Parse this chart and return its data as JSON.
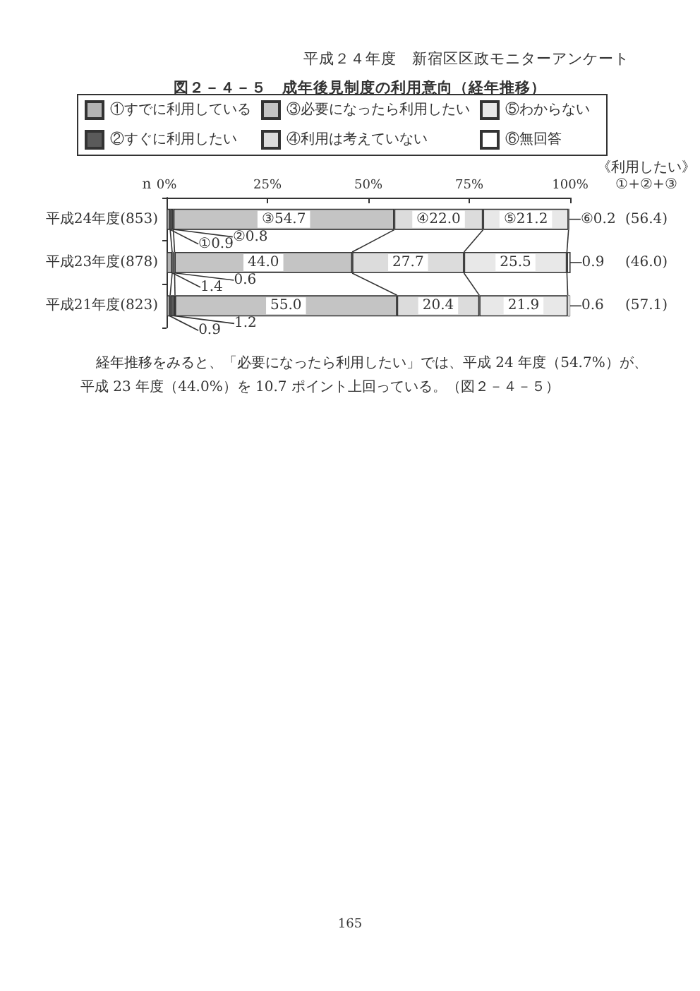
{
  "chart_data": {
    "type": "bar",
    "orientation": "horizontal",
    "stacked": true,
    "title": "図２－４－５　成年後見制度の利用意向（経年推移）",
    "ylabel": "n",
    "categories": [
      "平成24年度(853)",
      "平成23年度(878)",
      "平成21年度(823)"
    ],
    "series": [
      {
        "name": "①すでに利用している",
        "color": "#b4b4b4",
        "values": [
          0.9,
          1.4,
          0.9
        ],
        "value_labels": [
          "①0.9",
          "1.4",
          "0.9"
        ]
      },
      {
        "name": "②すぐに利用したい",
        "color": "#5a5a5a",
        "values": [
          0.8,
          0.6,
          1.2
        ],
        "value_labels": [
          "②0.8",
          "0.6",
          "1.2"
        ]
      },
      {
        "name": "③必要になったら利用したい",
        "color": "#c4c4c4",
        "values": [
          54.7,
          44.0,
          55.0
        ],
        "value_labels": [
          "③54.7",
          "44.0",
          "55.0"
        ]
      },
      {
        "name": "④利用は考えていない",
        "color": "#dcdcdc",
        "values": [
          22.0,
          27.7,
          20.4
        ],
        "value_labels": [
          "④22.0",
          "27.7",
          "20.4"
        ]
      },
      {
        "name": "⑤わからない",
        "color": "#e8e8e8",
        "values": [
          21.2,
          25.5,
          21.9
        ],
        "value_labels": [
          "⑤21.2",
          "25.5",
          "21.9"
        ]
      },
      {
        "name": "⑥無回答",
        "color": "#ffffff",
        "values": [
          0.2,
          0.9,
          0.6
        ],
        "value_labels": [
          "⑥0.2",
          "0.9",
          "0.6"
        ]
      }
    ],
    "xlim": [
      0,
      100
    ],
    "xticks": [
      {
        "value": 0,
        "label": "0%"
      },
      {
        "value": 25,
        "label": "25%"
      },
      {
        "value": 50,
        "label": "50%"
      },
      {
        "value": 75,
        "label": "75%"
      },
      {
        "value": 100,
        "label": "100%"
      }
    ],
    "legend": "top",
    "annotations": [
      "平成２４年度　新宿区区政モニターアンケート",
      "《利用したい》\n①+②+③",
      "(56.4)",
      "(46.0)",
      "(57.1)",
      "経年推移をみると、「必要になったら利用したい」では、平成 24 年度（54.7%）が、平成 23 年度（44.0%）を 10.7 ポイント上回っている。（図２－４－５）",
      "165"
    ]
  }
}
